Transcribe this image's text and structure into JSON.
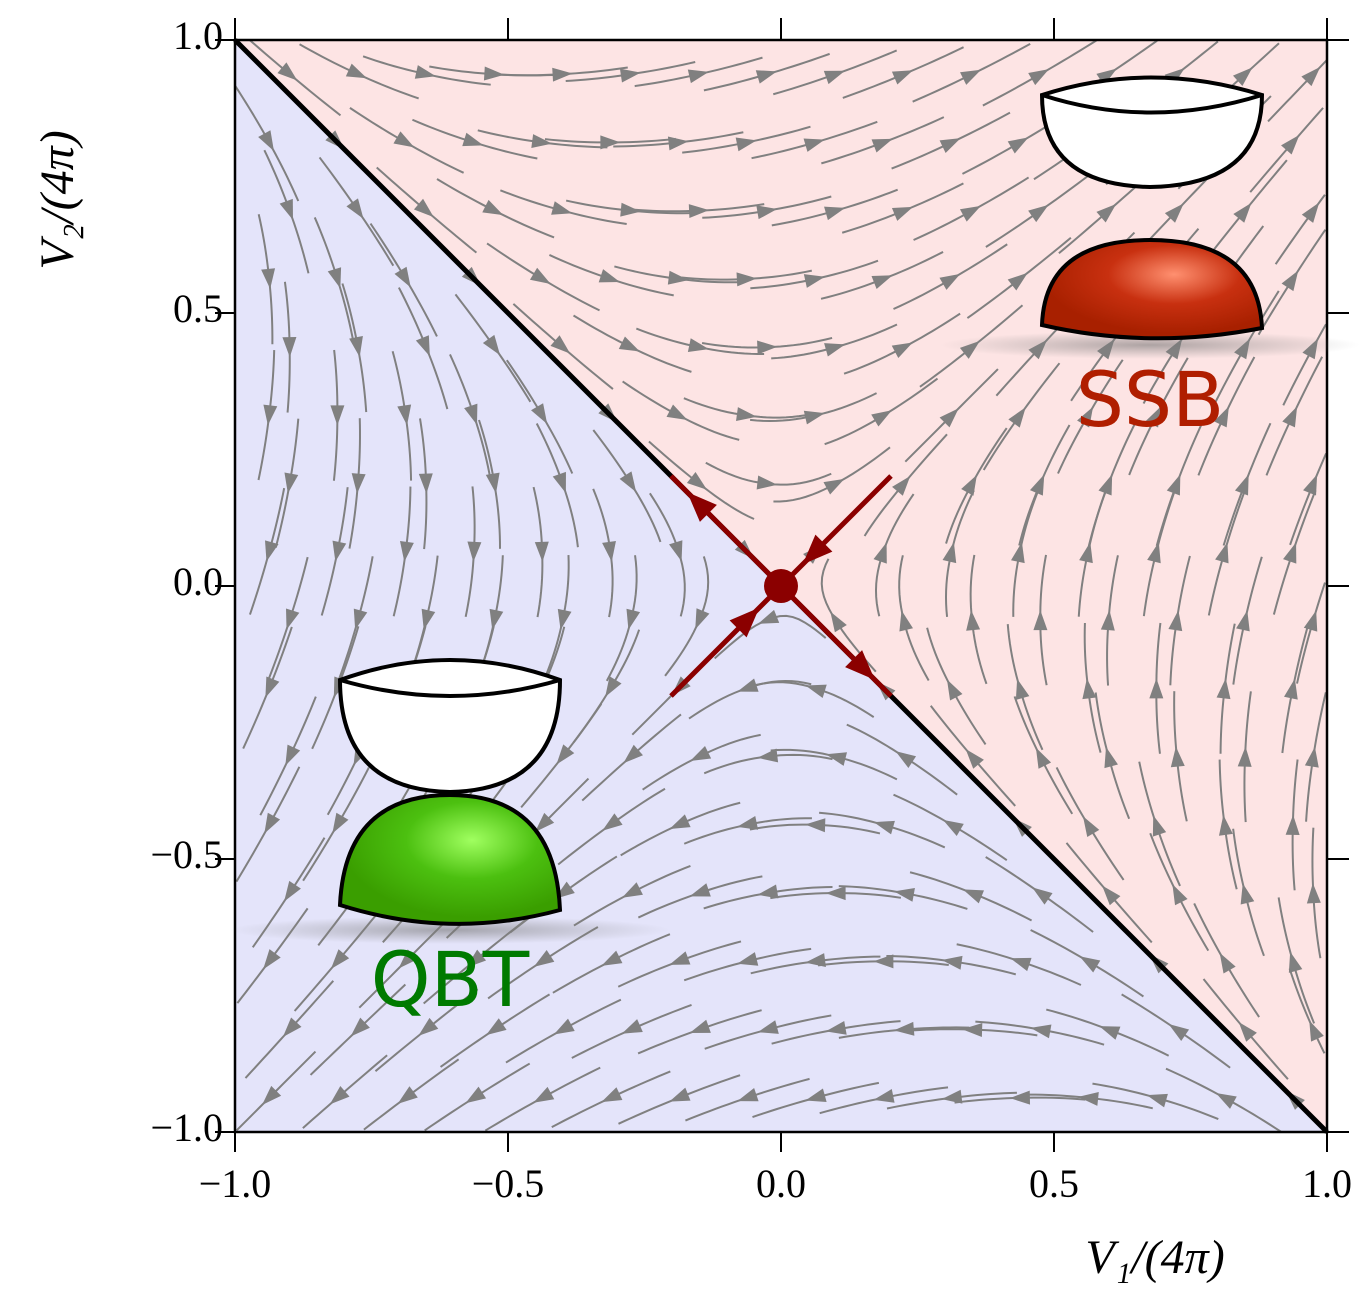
{
  "chart_data": {
    "type": "streamplot",
    "xlabel": "V₁/(4π)",
    "ylabel": "V₂/(4π)",
    "xlim": [
      -1,
      1
    ],
    "ylim": [
      -1,
      1
    ],
    "xticks": [
      {
        "value": -1,
        "label": "−1.0"
      },
      {
        "value": -0.5,
        "label": "−0.5"
      },
      {
        "value": 0,
        "label": "0.0"
      },
      {
        "value": 0.5,
        "label": "0.5"
      },
      {
        "value": 1,
        "label": "1.0"
      }
    ],
    "yticks": [
      {
        "value": -1,
        "label": "−1.0"
      },
      {
        "value": -0.5,
        "label": "−0.5"
      },
      {
        "value": 0,
        "label": "0.0"
      },
      {
        "value": 0.5,
        "label": "0.5"
      },
      {
        "value": 1,
        "label": "1.0"
      }
    ],
    "boundary": {
      "x": [
        -1,
        1
      ],
      "y": [
        1,
        -1
      ],
      "color": "#000000"
    },
    "fixed_point": {
      "x": 0,
      "y": 0,
      "color": "#8b0000"
    },
    "region_colors": {
      "lower": "#e4e4fa",
      "upper": "#fde4e4"
    },
    "stream_color": "#808080",
    "annotations": [
      {
        "text": "QBT",
        "color": "#007a00"
      },
      {
        "text": "SSB",
        "color": "#b01e00"
      }
    ]
  }
}
